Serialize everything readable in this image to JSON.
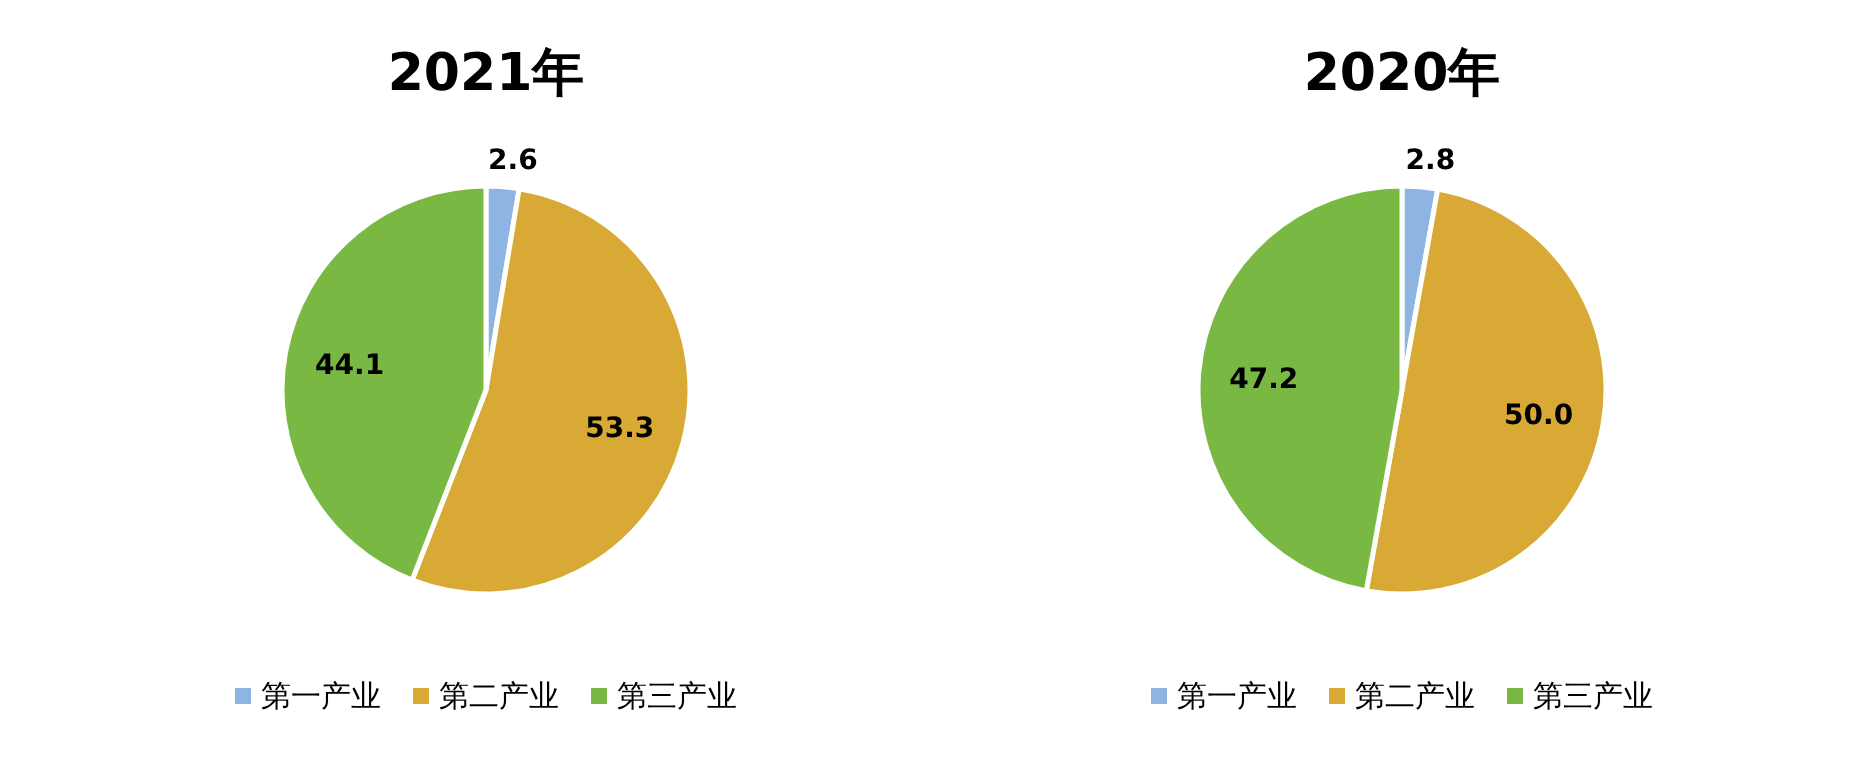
{
  "chart_data": [
    {
      "type": "pie",
      "title": "2021年",
      "categories": [
        "第一产业",
        "第二产业",
        "第三产业"
      ],
      "values": [
        2.6,
        53.3,
        44.1
      ],
      "value_labels": [
        "2.6",
        "53.3",
        "44.1"
      ],
      "colors": [
        "#8eb4e3",
        "#d9a935",
        "#78b843"
      ],
      "legend": "bottom"
    },
    {
      "type": "pie",
      "title": "2020年",
      "categories": [
        "第一产业",
        "第二产业",
        "第三产业"
      ],
      "values": [
        2.8,
        50.0,
        47.2
      ],
      "value_labels": [
        "2.8",
        "50.0",
        "47.2"
      ],
      "colors": [
        "#8eb4e3",
        "#d9a935",
        "#78b843"
      ],
      "legend": "bottom"
    }
  ]
}
